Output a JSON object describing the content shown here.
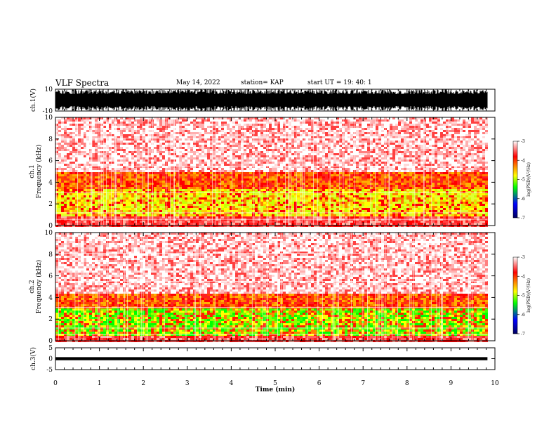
{
  "header": {
    "title": "VLF Spectra",
    "date": "May 14, 2022",
    "station": "station= KAP",
    "start": "start  UT  =    19: 40: 1"
  },
  "chart_data": [
    {
      "type": "line",
      "panel": "ch1-waveform",
      "ylabel": "ch.1(V)",
      "ylim": [
        -10,
        10
      ],
      "yticks": [
        "10",
        "-10"
      ],
      "xlim": [
        0,
        10
      ],
      "series": [
        {
          "values_range": [
            -10,
            10
          ],
          "x_end": 9.83
        }
      ]
    },
    {
      "type": "heatmap",
      "panel": "ch1-spectrogram",
      "ylabel": "ch.1\nFrequency  (kHz)",
      "ylim": [
        0,
        10
      ],
      "yticks": [
        "0",
        "2",
        "4",
        "6",
        "8",
        "10"
      ],
      "xlim": [
        0,
        10
      ],
      "x_end": 9.83,
      "bands_khz": [
        [
          0,
          1,
          "red"
        ],
        [
          1,
          3.5,
          "yellow-green"
        ],
        [
          3.5,
          5,
          "orange-red"
        ],
        [
          5,
          10,
          "sparse red"
        ]
      ]
    },
    {
      "type": "heatmap",
      "panel": "ch2-spectrogram",
      "ylabel": "ch.2\nFrequency  (kHz)",
      "ylim": [
        0,
        10
      ],
      "yticks": [
        "0",
        "2",
        "4",
        "6",
        "8",
        "10"
      ],
      "xlim": [
        0,
        10
      ],
      "x_end": 9.83,
      "bands_khz": [
        [
          0,
          0.5,
          "red"
        ],
        [
          0.5,
          3,
          "green"
        ],
        [
          3,
          4.5,
          "orange-red"
        ],
        [
          4.5,
          10,
          "sparse red"
        ]
      ]
    },
    {
      "type": "line",
      "panel": "ch3-waveform",
      "ylabel": "ch.3(V)",
      "ylim": [
        -5,
        5
      ],
      "yticks": [
        "5",
        "0",
        "-5"
      ],
      "xlim": [
        0,
        10
      ],
      "series": [
        {
          "values_range": [
            -0.3,
            0.3
          ],
          "x_end": 9.83
        }
      ]
    }
  ],
  "x_axis": {
    "label": "Time  (min)",
    "ticks": [
      "0",
      "1",
      "2",
      "3",
      "4",
      "5",
      "6",
      "7",
      "8",
      "9",
      "10"
    ]
  },
  "colorbar": {
    "label": "log(PSD)(V²/Hz)",
    "ticks": [
      "-3",
      "-4",
      "-5",
      "-6",
      "-7"
    ],
    "range": [
      -7,
      -3
    ],
    "colors": [
      "#000060",
      "#0000ff",
      "#00ff00",
      "#ffff00",
      "#ff8000",
      "#ff0000",
      "#ffffff"
    ]
  }
}
